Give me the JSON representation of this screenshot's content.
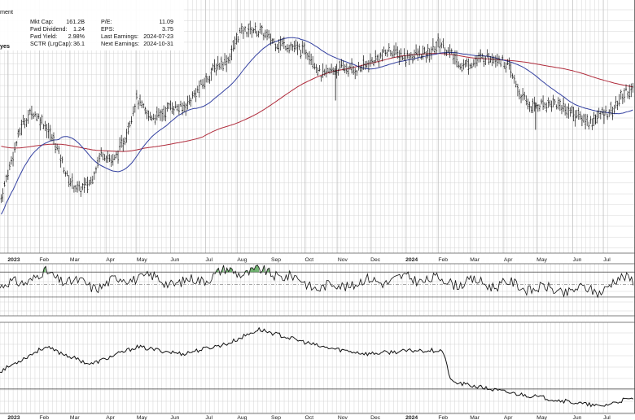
{
  "header": {
    "cut_title": "ment",
    "cut_suffix": "yes",
    "stats_left": [
      {
        "label": "Mkt Cap:",
        "value": "161.2B"
      },
      {
        "label": "Fwd Dividend:",
        "value": "1.24"
      },
      {
        "label": "Fwd Yield:",
        "value": "2.98%"
      },
      {
        "label": "SCTR (LrgCap):",
        "value": "36.1"
      }
    ],
    "stats_right": [
      {
        "label": "P/E:",
        "value": "11.09"
      },
      {
        "label": "EPS:",
        "value": "3.75"
      },
      {
        "label": "Last Earnings:",
        "value": "2024-07-23"
      },
      {
        "label": "Next Earnings:",
        "value": "2024-10-31"
      }
    ]
  },
  "x_axis": {
    "labels": [
      {
        "text": "2023",
        "bold": true
      },
      {
        "text": "Feb",
        "bold": false
      },
      {
        "text": "Mar",
        "bold": false
      },
      {
        "text": "Apr",
        "bold": false
      },
      {
        "text": "May",
        "bold": false
      },
      {
        "text": "Jun",
        "bold": false
      },
      {
        "text": "Jul",
        "bold": false
      },
      {
        "text": "Aug",
        "bold": false
      },
      {
        "text": "Sep",
        "bold": false
      },
      {
        "text": "Oct",
        "bold": false
      },
      {
        "text": "Nov",
        "bold": false
      },
      {
        "text": "Dec",
        "bold": false
      },
      {
        "text": "2024",
        "bold": true
      },
      {
        "text": "Feb",
        "bold": false
      },
      {
        "text": "Mar",
        "bold": false
      },
      {
        "text": "Apr",
        "bold": false
      },
      {
        "text": "May",
        "bold": false
      },
      {
        "text": "Jun",
        "bold": false
      },
      {
        "text": "Jul",
        "bold": false
      }
    ]
  },
  "colors": {
    "price": "#111111",
    "ma_short": "#3340a0",
    "ma_long": "#b02c3c",
    "oscillator_overbought_fill": "#3f9a3f",
    "grid": "#d4d4d4"
  },
  "chart_data": [
    {
      "type": "line",
      "subtype": "ohlc",
      "x": [
        "2022-12-27",
        "2023-01-06",
        "2023-01-16",
        "2023-01-26",
        "2023-02-06",
        "2023-02-16",
        "2023-02-27",
        "2023-03-09",
        "2023-03-20",
        "2023-03-30",
        "2023-04-10",
        "2023-04-20",
        "2023-05-01",
        "2023-05-11",
        "2023-05-22",
        "2023-06-01",
        "2023-06-12",
        "2023-06-22",
        "2023-07-03",
        "2023-07-13",
        "2023-07-24",
        "2023-08-03",
        "2023-08-14",
        "2023-08-24",
        "2023-09-05",
        "2023-09-15",
        "2023-09-26",
        "2023-10-06",
        "2023-10-17",
        "2023-10-27",
        "2023-11-07",
        "2023-11-17",
        "2023-11-28",
        "2023-12-08",
        "2023-12-19",
        "2024-01-02",
        "2024-01-12",
        "2024-01-23",
        "2024-02-02",
        "2024-02-13",
        "2024-02-23",
        "2024-03-05",
        "2024-03-15",
        "2024-03-26",
        "2024-04-05",
        "2024-04-16",
        "2024-04-26",
        "2024-05-07",
        "2024-05-17",
        "2024-05-28",
        "2024-06-07",
        "2024-06-18",
        "2024-06-28",
        "2024-07-10",
        "2024-07-22"
      ],
      "series": [
        {
          "values": [
            27.0,
            31.5,
            35.6,
            37.0,
            35.6,
            33.4,
            29.7,
            28.4,
            29.3,
            32.6,
            31.5,
            34.0,
            38.4,
            36.5,
            36.5,
            37.6,
            37.3,
            38.7,
            40.4,
            42.0,
            42.7,
            45.6,
            46.0,
            45.6,
            44.5,
            44.3,
            43.8,
            43.4,
            40.9,
            41.5,
            41.8,
            41.5,
            42.1,
            42.9,
            43.7,
            42.9,
            43.3,
            43.2,
            44.6,
            43.2,
            42.0,
            42.4,
            43.0,
            42.9,
            42.0,
            38.8,
            37.5,
            37.8,
            38.0,
            37.3,
            36.6,
            35.8,
            36.6,
            37.2,
            39.3
          ]
        }
      ]
    },
    {
      "type": "line",
      "x": [
        "2022-12-27",
        "2023-02-06",
        "2023-03-20",
        "2023-05-01",
        "2023-06-12",
        "2023-07-24",
        "2023-09-05",
        "2023-10-17",
        "2023-11-28",
        "2024-01-12",
        "2024-02-23",
        "2024-04-05",
        "2024-05-17",
        "2024-06-28",
        "2024-07-22"
      ],
      "series": [
        {
          "values": [
            47.0,
            60.0,
            48.0,
            58.0,
            51.0,
            63.0,
            61.0,
            47.0,
            53.0,
            56.0,
            52.0,
            50.0,
            44.0,
            45.0,
            57.0
          ]
        }
      ]
    },
    {
      "type": "line",
      "x": [
        "2022-12-27",
        "2023-02-06",
        "2023-03-20",
        "2023-05-01",
        "2023-06-12",
        "2023-07-24",
        "2023-08-21",
        "2023-10-17",
        "2023-11-28",
        "2024-01-12",
        "2024-02-05",
        "2024-02-13",
        "2024-04-05",
        "2024-05-17",
        "2024-06-28",
        "2024-07-22"
      ],
      "series": [
        {
          "values": [
            1.05,
            1.12,
            1.07,
            1.12,
            1.1,
            1.13,
            1.17,
            1.12,
            1.1,
            1.11,
            1.11,
            1.02,
            0.99,
            0.97,
            0.95,
            0.97
          ]
        }
      ]
    }
  ]
}
